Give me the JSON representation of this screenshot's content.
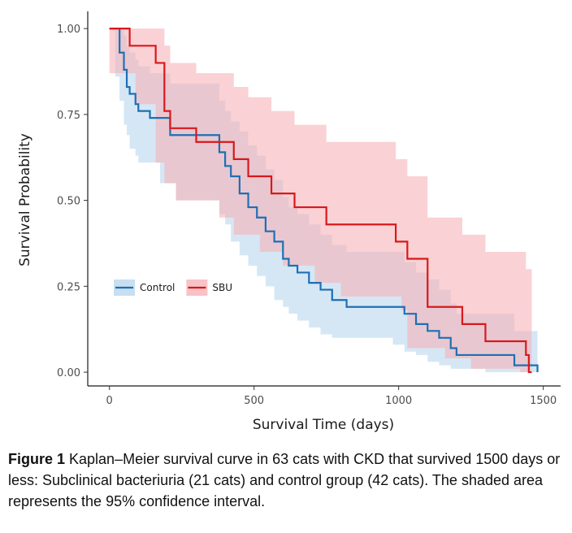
{
  "chart_data": {
    "type": "line",
    "xlabel": "Survival Time (days)",
    "ylabel": "Survival Probability",
    "xlim": [
      -75,
      1560
    ],
    "ylim": [
      -0.04,
      1.05
    ],
    "x_ticks": [
      0,
      500,
      1000,
      1500
    ],
    "x_tick_labels": [
      "0",
      "500",
      "1000",
      "1500"
    ],
    "y_ticks": [
      0,
      0.25,
      0.5,
      0.75,
      1.0
    ],
    "y_tick_labels": [
      "0.00",
      "0.25",
      "0.50",
      "0.75",
      "1.00"
    ],
    "grid": false,
    "legend_position": "bottom-left",
    "series": [
      {
        "name": "Control",
        "color": "#1f6fb4",
        "band_color": "#b9d7ee",
        "x": [
          0,
          20,
          35,
          50,
          60,
          70,
          90,
          100,
          140,
          175,
          210,
          230,
          380,
          400,
          420,
          450,
          480,
          510,
          540,
          570,
          600,
          620,
          650,
          690,
          730,
          770,
          820,
          900,
          980,
          1020,
          1060,
          1100,
          1140,
          1180,
          1200,
          1240,
          1300,
          1400,
          1450,
          1480
        ],
        "y": [
          1.0,
          1.0,
          0.93,
          0.88,
          0.83,
          0.81,
          0.78,
          0.76,
          0.74,
          0.74,
          0.69,
          0.69,
          0.64,
          0.6,
          0.57,
          0.52,
          0.48,
          0.45,
          0.41,
          0.38,
          0.33,
          0.31,
          0.29,
          0.26,
          0.24,
          0.21,
          0.19,
          0.19,
          0.19,
          0.17,
          0.14,
          0.12,
          0.1,
          0.07,
          0.05,
          0.05,
          0.05,
          0.02,
          0.02,
          0.0
        ],
        "ci_upper": [
          1.0,
          1.0,
          1.0,
          0.98,
          0.95,
          0.93,
          0.91,
          0.89,
          0.87,
          0.87,
          0.84,
          0.84,
          0.79,
          0.76,
          0.73,
          0.7,
          0.66,
          0.63,
          0.59,
          0.56,
          0.51,
          0.48,
          0.46,
          0.43,
          0.4,
          0.37,
          0.35,
          0.35,
          0.35,
          0.32,
          0.29,
          0.27,
          0.24,
          0.2,
          0.17,
          0.17,
          0.17,
          0.12,
          0.12,
          0.12
        ],
        "ci_lower": [
          1.0,
          1.0,
          0.86,
          0.79,
          0.72,
          0.69,
          0.65,
          0.63,
          0.61,
          0.61,
          0.55,
          0.55,
          0.5,
          0.46,
          0.43,
          0.38,
          0.34,
          0.31,
          0.28,
          0.25,
          0.21,
          0.19,
          0.17,
          0.15,
          0.13,
          0.11,
          0.1,
          0.1,
          0.1,
          0.08,
          0.06,
          0.05,
          0.03,
          0.02,
          0.01,
          0.01,
          0.01,
          0.0,
          0.0,
          0.0
        ]
      },
      {
        "name": "SBU",
        "color": "#d7191c",
        "band_color": "#f6b3b8",
        "x": [
          0,
          70,
          90,
          160,
          190,
          210,
          230,
          300,
          380,
          430,
          480,
          520,
          560,
          600,
          640,
          710,
          750,
          800,
          990,
          1010,
          1030,
          1100,
          1120,
          1160,
          1220,
          1250,
          1300,
          1330,
          1420,
          1440,
          1450,
          1460
        ],
        "y": [
          1.0,
          0.95,
          0.95,
          0.9,
          0.76,
          0.71,
          0.71,
          0.67,
          0.67,
          0.62,
          0.57,
          0.57,
          0.52,
          0.52,
          0.48,
          0.48,
          0.43,
          0.43,
          0.38,
          0.38,
          0.33,
          0.19,
          0.19,
          0.19,
          0.14,
          0.14,
          0.09,
          0.09,
          0.09,
          0.05,
          0.0,
          0.0
        ],
        "ci_upper": [
          1.0,
          1.0,
          1.0,
          1.0,
          0.95,
          0.9,
          0.9,
          0.87,
          0.87,
          0.83,
          0.8,
          0.8,
          0.76,
          0.76,
          0.72,
          0.72,
          0.67,
          0.67,
          0.62,
          0.62,
          0.57,
          0.45,
          0.45,
          0.45,
          0.4,
          0.4,
          0.35,
          0.35,
          0.35,
          0.3,
          0.3,
          0.3
        ],
        "ci_lower": [
          1.0,
          0.87,
          0.87,
          0.78,
          0.61,
          0.55,
          0.55,
          0.5,
          0.5,
          0.45,
          0.4,
          0.4,
          0.35,
          0.35,
          0.31,
          0.31,
          0.26,
          0.26,
          0.22,
          0.22,
          0.18,
          0.07,
          0.07,
          0.07,
          0.04,
          0.04,
          0.01,
          0.01,
          0.01,
          0.0,
          0.0,
          0.0
        ]
      }
    ]
  },
  "caption": {
    "label": "Figure 1",
    "text": " Kaplan–Meier survival curve in 63 cats with CKD that survived 1500 days or less: Subclinical bacteriuria (21 cats) and control group (42 cats). The shaded area represents the 95% confidence interval."
  }
}
